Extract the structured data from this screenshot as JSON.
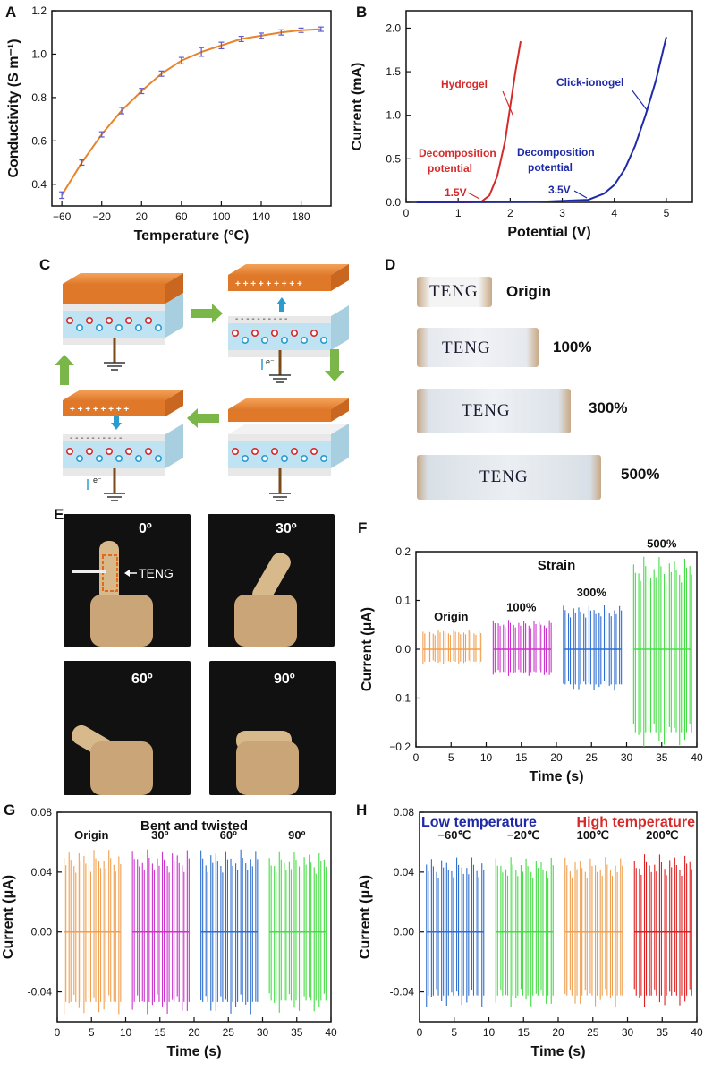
{
  "panels": {
    "a": "A",
    "b": "B",
    "c": "C",
    "d": "D",
    "e": "E",
    "f": "F",
    "g": "G",
    "h": "H"
  },
  "chart_data": [
    {
      "id": "A",
      "type": "line",
      "xlabel": "Temperature (°C)",
      "ylabel": "Conductivity (S m⁻¹)",
      "xlim": [
        -70,
        210
      ],
      "ylim": [
        0.3,
        1.2
      ],
      "xticks": [
        -60,
        -20,
        20,
        60,
        100,
        140,
        180
      ],
      "yticks": [
        0.4,
        0.6,
        0.8,
        1.0,
        1.2
      ],
      "series": [
        {
          "color": "#e8842a",
          "marker_color": "#5b5bd6",
          "x": [
            -60,
            -40,
            -20,
            0,
            20,
            40,
            60,
            80,
            100,
            120,
            140,
            160,
            180,
            200
          ],
          "y": [
            0.35,
            0.5,
            0.63,
            0.74,
            0.83,
            0.91,
            0.97,
            1.01,
            1.04,
            1.07,
            1.085,
            1.1,
            1.11,
            1.115
          ],
          "err": [
            0.015,
            0.012,
            0.012,
            0.015,
            0.012,
            0.012,
            0.015,
            0.02,
            0.015,
            0.012,
            0.012,
            0.012,
            0.01,
            0.01
          ]
        }
      ]
    },
    {
      "id": "B",
      "type": "line",
      "xlabel": "Potential (V)",
      "ylabel": "Current (mA)",
      "xlim": [
        0,
        5.5
      ],
      "ylim": [
        0,
        2.2
      ],
      "xticks": [
        0,
        1,
        2,
        3,
        4,
        5
      ],
      "yticks": [
        0.0,
        0.5,
        1.0,
        1.5,
        2.0
      ],
      "series": [
        {
          "name": "Hydrogel",
          "color": "#d62a2a",
          "x": [
            0.2,
            1.2,
            1.45,
            1.6,
            1.75,
            1.9,
            2.0,
            2.1,
            2.2
          ],
          "y": [
            0.0,
            0.0,
            0.01,
            0.08,
            0.3,
            0.7,
            1.1,
            1.5,
            1.85
          ]
        },
        {
          "name": "Click-ionogel",
          "color": "#1f2aa8",
          "x": [
            0.2,
            2.5,
            3.5,
            3.8,
            4.0,
            4.2,
            4.4,
            4.6,
            4.8,
            5.0
          ],
          "y": [
            0.0,
            0.005,
            0.03,
            0.1,
            0.2,
            0.38,
            0.65,
            1.0,
            1.4,
            1.9
          ]
        }
      ],
      "annotations": [
        {
          "text": "Hydrogel",
          "color": "#d62a2a"
        },
        {
          "text": "Decomposition",
          "color": "#d62a2a"
        },
        {
          "text": "potential",
          "color": "#d62a2a"
        },
        {
          "text": "1.5V",
          "color": "#d62a2a"
        },
        {
          "text": "Click-ionogel",
          "color": "#1f2aa8"
        },
        {
          "text": "Decomposition",
          "color": "#1f2aa8"
        },
        {
          "text": "potential",
          "color": "#1f2aa8"
        },
        {
          "text": "3.5V",
          "color": "#1f2aa8"
        }
      ]
    },
    {
      "id": "F",
      "type": "line",
      "title": "Strain",
      "xlabel": "Time (s)",
      "ylabel": "Current (μA)",
      "xlim": [
        0,
        40
      ],
      "ylim": [
        -0.2,
        0.2
      ],
      "xticks": [
        0,
        5,
        10,
        15,
        20,
        25,
        30,
        35,
        40
      ],
      "yticks": [
        -0.2,
        -0.1,
        0.0,
        0.1,
        0.2
      ],
      "series": [
        {
          "name": "Origin",
          "color": "#f0a050",
          "t": [
            1,
            9
          ],
          "amp_pos": 0.04,
          "amp_neg": -0.03
        },
        {
          "name": "100%",
          "color": "#cc33cc",
          "t": [
            11,
            19
          ],
          "amp_pos": 0.06,
          "amp_neg": -0.055
        },
        {
          "name": "300%",
          "color": "#2f6fd0",
          "t": [
            21,
            29
          ],
          "amp_pos": 0.09,
          "amp_neg": -0.085
        },
        {
          "name": "500%",
          "color": "#44dd44",
          "t": [
            31,
            39
          ],
          "amp_pos": 0.19,
          "amp_neg": -0.2
        }
      ]
    },
    {
      "id": "G",
      "type": "line",
      "title": "Bent and twisted",
      "xlabel": "Time (s)",
      "ylabel": "Current (μA)",
      "xlim": [
        0,
        40
      ],
      "ylim": [
        -0.06,
        0.08
      ],
      "xticks": [
        0,
        5,
        10,
        15,
        20,
        25,
        30,
        35,
        40
      ],
      "yticks": [
        -0.04,
        0.0,
        0.04,
        0.08
      ],
      "ytick_labels": [
        "-0.04",
        "0.00",
        "0.04",
        "0.08"
      ],
      "series": [
        {
          "name": "Origin",
          "color": "#f0a050",
          "t": [
            1,
            9
          ],
          "amp_pos": 0.055,
          "amp_neg": -0.055
        },
        {
          "name": "30º",
          "color": "#cc33cc",
          "t": [
            11,
            19
          ],
          "amp_pos": 0.055,
          "amp_neg": -0.055
        },
        {
          "name": "60º",
          "color": "#2f6fd0",
          "t": [
            21,
            29
          ],
          "amp_pos": 0.055,
          "amp_neg": -0.055
        },
        {
          "name": "90º",
          "color": "#44dd44",
          "t": [
            31,
            39
          ],
          "amp_pos": 0.054,
          "amp_neg": -0.054
        }
      ]
    },
    {
      "id": "H",
      "type": "line",
      "xlabel": "Time (s)",
      "ylabel": "Current (μA)",
      "xlim": [
        0,
        40
      ],
      "ylim": [
        -0.06,
        0.08
      ],
      "xticks": [
        0,
        5,
        10,
        15,
        20,
        25,
        30,
        35,
        40
      ],
      "yticks": [
        -0.04,
        0.0,
        0.04,
        0.08
      ],
      "ytick_labels": [
        "-0.04",
        "0.00",
        "0.04",
        "0.08"
      ],
      "header_left": "Low temperature",
      "header_left_color": "#1f2aa8",
      "header_right": "High temperature",
      "header_right_color": "#d62a2a",
      "series": [
        {
          "name": "−60℃",
          "color": "#2f6fd0",
          "t": [
            1,
            9
          ],
          "amp_pos": 0.05,
          "amp_neg": -0.05
        },
        {
          "name": "−20℃",
          "color": "#44dd44",
          "t": [
            11,
            19
          ],
          "amp_pos": 0.05,
          "amp_neg": -0.05
        },
        {
          "name": "100℃",
          "color": "#f0a050",
          "t": [
            21,
            29
          ],
          "amp_pos": 0.05,
          "amp_neg": -0.05
        },
        {
          "name": "200℃",
          "color": "#e02020",
          "t": [
            31,
            39
          ],
          "amp_pos": 0.052,
          "amp_neg": -0.05
        }
      ]
    }
  ],
  "panel_d": {
    "word": "TENG",
    "strains": [
      "Origin",
      "100%",
      "300%",
      "500%"
    ]
  },
  "panel_e": {
    "angles": [
      "0º",
      "30º",
      "60º",
      "90º"
    ],
    "teng_label": "TENG"
  },
  "panel_c": {
    "electron": "e⁻"
  },
  "colors": {
    "orange_plate": "#e88a3c",
    "gel_blue": "#bfe3f2",
    "arrow_green": "#7ab648",
    "arrow_blue": "#2a9ccf"
  }
}
